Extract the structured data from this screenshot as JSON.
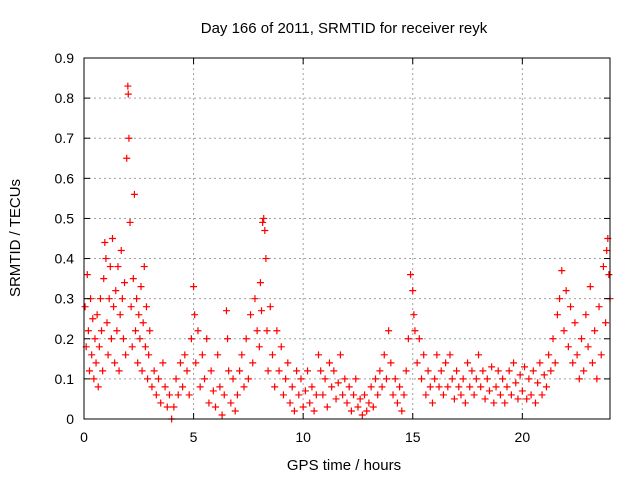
{
  "chart_data": {
    "type": "scatter",
    "title": "Day 166 of 2011, SRMTID for receiver reyk",
    "xlabel": "GPS time / hours",
    "ylabel": "SRMTID / TECUs",
    "xlim": [
      0,
      24
    ],
    "ylim": [
      0,
      0.9
    ],
    "xticks": [
      "0",
      "5",
      "10",
      "15",
      "20"
    ],
    "xtick_values": [
      0,
      5,
      10,
      15,
      20
    ],
    "yticks": [
      "0",
      "0.1",
      "0.2",
      "0.3",
      "0.4",
      "0.5",
      "0.6",
      "0.7",
      "0.8",
      "0.9"
    ],
    "ytick_values": [
      0,
      0.1,
      0.2,
      0.3,
      0.4,
      0.5,
      0.6,
      0.7,
      0.8,
      0.9
    ],
    "grid": true,
    "marker": "+",
    "color": "#ff0000",
    "series": [
      {
        "points": [
          [
            0.05,
            0.28
          ],
          [
            0.1,
            0.18
          ],
          [
            0.15,
            0.36
          ],
          [
            0.2,
            0.22
          ],
          [
            0.25,
            0.12
          ],
          [
            0.3,
            0.3
          ],
          [
            0.35,
            0.16
          ],
          [
            0.4,
            0.25
          ],
          [
            0.45,
            0.1
          ],
          [
            0.5,
            0.2
          ],
          [
            0.55,
            0.14
          ],
          [
            0.6,
            0.26
          ],
          [
            0.65,
            0.08
          ],
          [
            0.7,
            0.18
          ],
          [
            0.75,
            0.3
          ],
          [
            0.8,
            0.22
          ],
          [
            0.85,
            0.12
          ],
          [
            0.9,
            0.35
          ],
          [
            0.95,
            0.44
          ],
          [
            1.0,
            0.4
          ],
          [
            1.05,
            0.24
          ],
          [
            1.1,
            0.16
          ],
          [
            1.15,
            0.3
          ],
          [
            1.2,
            0.38
          ],
          [
            1.25,
            0.2
          ],
          [
            1.3,
            0.45
          ],
          [
            1.35,
            0.28
          ],
          [
            1.4,
            0.14
          ],
          [
            1.45,
            0.32
          ],
          [
            1.5,
            0.22
          ],
          [
            1.55,
            0.38
          ],
          [
            1.6,
            0.12
          ],
          [
            1.65,
            0.26
          ],
          [
            1.7,
            0.42
          ],
          [
            1.75,
            0.3
          ],
          [
            1.8,
            0.2
          ],
          [
            1.85,
            0.34
          ],
          [
            1.9,
            0.16
          ],
          [
            1.95,
            0.65
          ],
          [
            2.0,
            0.83
          ],
          [
            2.02,
            0.81
          ],
          [
            2.05,
            0.7
          ],
          [
            2.1,
            0.49
          ],
          [
            2.15,
            0.28
          ],
          [
            2.2,
            0.18
          ],
          [
            2.25,
            0.35
          ],
          [
            2.3,
            0.56
          ],
          [
            2.35,
            0.22
          ],
          [
            2.4,
            0.3
          ],
          [
            2.45,
            0.14
          ],
          [
            2.5,
            0.26
          ],
          [
            2.55,
            0.2
          ],
          [
            2.6,
            0.33
          ],
          [
            2.65,
            0.12
          ],
          [
            2.7,
            0.24
          ],
          [
            2.75,
            0.38
          ],
          [
            2.8,
            0.18
          ],
          [
            2.85,
            0.28
          ],
          [
            2.9,
            0.1
          ],
          [
            2.95,
            0.16
          ],
          [
            3.0,
            0.22
          ],
          [
            3.1,
            0.08
          ],
          [
            3.2,
            0.12
          ],
          [
            3.3,
            0.06
          ],
          [
            3.4,
            0.1
          ],
          [
            3.5,
            0.04
          ],
          [
            3.6,
            0.14
          ],
          [
            3.7,
            0.08
          ],
          [
            3.8,
            0.03
          ],
          [
            3.9,
            0.06
          ],
          [
            4.0,
            0.0
          ],
          [
            4.1,
            0.03
          ],
          [
            4.2,
            0.1
          ],
          [
            4.3,
            0.06
          ],
          [
            4.4,
            0.14
          ],
          [
            4.5,
            0.08
          ],
          [
            4.6,
            0.16
          ],
          [
            4.7,
            0.12
          ],
          [
            4.8,
            0.06
          ],
          [
            4.9,
            0.2
          ],
          [
            5.0,
            0.33
          ],
          [
            5.05,
            0.26
          ],
          [
            5.1,
            0.14
          ],
          [
            5.2,
            0.22
          ],
          [
            5.3,
            0.08
          ],
          [
            5.4,
            0.16
          ],
          [
            5.5,
            0.1
          ],
          [
            5.6,
            0.2
          ],
          [
            5.7,
            0.04
          ],
          [
            5.8,
            0.12
          ],
          [
            5.9,
            0.07
          ],
          [
            6.0,
            0.03
          ],
          [
            6.1,
            0.16
          ],
          [
            6.2,
            0.08
          ],
          [
            6.3,
            0.01
          ],
          [
            6.4,
            0.06
          ],
          [
            6.5,
            0.27
          ],
          [
            6.55,
            0.2
          ],
          [
            6.6,
            0.12
          ],
          [
            6.7,
            0.04
          ],
          [
            6.8,
            0.1
          ],
          [
            6.9,
            0.02
          ],
          [
            7.0,
            0.06
          ],
          [
            7.1,
            0.12
          ],
          [
            7.2,
            0.16
          ],
          [
            7.3,
            0.08
          ],
          [
            7.4,
            0.2
          ],
          [
            7.5,
            0.1
          ],
          [
            7.6,
            0.26
          ],
          [
            7.7,
            0.14
          ],
          [
            7.8,
            0.3
          ],
          [
            7.9,
            0.22
          ],
          [
            8.0,
            0.18
          ],
          [
            8.05,
            0.34
          ],
          [
            8.1,
            0.27
          ],
          [
            8.15,
            0.49
          ],
          [
            8.2,
            0.5
          ],
          [
            8.25,
            0.47
          ],
          [
            8.3,
            0.4
          ],
          [
            8.35,
            0.22
          ],
          [
            8.4,
            0.12
          ],
          [
            8.5,
            0.28
          ],
          [
            8.6,
            0.16
          ],
          [
            8.7,
            0.08
          ],
          [
            8.8,
            0.22
          ],
          [
            8.9,
            0.12
          ],
          [
            9.0,
            0.18
          ],
          [
            9.1,
            0.06
          ],
          [
            9.2,
            0.1
          ],
          [
            9.3,
            0.14
          ],
          [
            9.4,
            0.04
          ],
          [
            9.5,
            0.08
          ],
          [
            9.6,
            0.02
          ],
          [
            9.7,
            0.12
          ],
          [
            9.8,
            0.06
          ],
          [
            9.9,
            0.1
          ],
          [
            10.0,
            0.03
          ],
          [
            10.1,
            0.07
          ],
          [
            10.2,
            0.12
          ],
          [
            10.3,
            0.04
          ],
          [
            10.4,
            0.08
          ],
          [
            10.5,
            0.02
          ],
          [
            10.6,
            0.06
          ],
          [
            10.7,
            0.16
          ],
          [
            10.8,
            0.12
          ],
          [
            10.9,
            0.06
          ],
          [
            11.0,
            0.1
          ],
          [
            11.1,
            0.03
          ],
          [
            11.2,
            0.14
          ],
          [
            11.3,
            0.08
          ],
          [
            11.4,
            0.12
          ],
          [
            11.5,
            0.05
          ],
          [
            11.6,
            0.09
          ],
          [
            11.7,
            0.16
          ],
          [
            11.8,
            0.06
          ],
          [
            11.9,
            0.1
          ],
          [
            12.0,
            0.04
          ],
          [
            12.1,
            0.08
          ],
          [
            12.2,
            0.02
          ],
          [
            12.3,
            0.06
          ],
          [
            12.4,
            0.1
          ],
          [
            12.5,
            0.03
          ],
          [
            12.6,
            0.05
          ],
          [
            12.7,
            0.01
          ],
          [
            12.8,
            0.06
          ],
          [
            12.9,
            0.02
          ],
          [
            13.0,
            0.04
          ],
          [
            13.1,
            0.08
          ],
          [
            13.2,
            0.03
          ],
          [
            13.3,
            0.1
          ],
          [
            13.4,
            0.06
          ],
          [
            13.5,
            0.12
          ],
          [
            13.6,
            0.08
          ],
          [
            13.7,
            0.16
          ],
          [
            13.8,
            0.1
          ],
          [
            13.9,
            0.22
          ],
          [
            14.0,
            0.14
          ],
          [
            14.1,
            0.06
          ],
          [
            14.2,
            0.1
          ],
          [
            14.3,
            0.04
          ],
          [
            14.4,
            0.08
          ],
          [
            14.5,
            0.02
          ],
          [
            14.6,
            0.06
          ],
          [
            14.7,
            0.12
          ],
          [
            14.8,
            0.2
          ],
          [
            14.9,
            0.36
          ],
          [
            15.0,
            0.32
          ],
          [
            15.05,
            0.26
          ],
          [
            15.1,
            0.22
          ],
          [
            15.2,
            0.14
          ],
          [
            15.3,
            0.2
          ],
          [
            15.4,
            0.1
          ],
          [
            15.5,
            0.16
          ],
          [
            15.6,
            0.06
          ],
          [
            15.7,
            0.12
          ],
          [
            15.8,
            0.08
          ],
          [
            15.9,
            0.04
          ],
          [
            16.0,
            0.1
          ],
          [
            16.1,
            0.16
          ],
          [
            16.2,
            0.08
          ],
          [
            16.3,
            0.12
          ],
          [
            16.4,
            0.06
          ],
          [
            16.5,
            0.14
          ],
          [
            16.6,
            0.08
          ],
          [
            16.7,
            0.16
          ],
          [
            16.8,
            0.1
          ],
          [
            16.9,
            0.05
          ],
          [
            17.0,
            0.12
          ],
          [
            17.1,
            0.08
          ],
          [
            17.2,
            0.06
          ],
          [
            17.3,
            0.1
          ],
          [
            17.4,
            0.04
          ],
          [
            17.5,
            0.14
          ],
          [
            17.6,
            0.08
          ],
          [
            17.7,
            0.12
          ],
          [
            17.8,
            0.06
          ],
          [
            17.9,
            0.1
          ],
          [
            18.0,
            0.16
          ],
          [
            18.1,
            0.08
          ],
          [
            18.2,
            0.12
          ],
          [
            18.3,
            0.05
          ],
          [
            18.4,
            0.1
          ],
          [
            18.5,
            0.07
          ],
          [
            18.6,
            0.13
          ],
          [
            18.7,
            0.04
          ],
          [
            18.8,
            0.08
          ],
          [
            18.9,
            0.12
          ],
          [
            19.0,
            0.06
          ],
          [
            19.1,
            0.1
          ],
          [
            19.2,
            0.04
          ],
          [
            19.3,
            0.08
          ],
          [
            19.4,
            0.12
          ],
          [
            19.5,
            0.06
          ],
          [
            19.6,
            0.14
          ],
          [
            19.7,
            0.09
          ],
          [
            19.8,
            0.05
          ],
          [
            19.9,
            0.11
          ],
          [
            20.0,
            0.07
          ],
          [
            20.1,
            0.13
          ],
          [
            20.2,
            0.05
          ],
          [
            20.3,
            0.1
          ],
          [
            20.4,
            0.06
          ],
          [
            20.5,
            0.12
          ],
          [
            20.6,
            0.04
          ],
          [
            20.7,
            0.09
          ],
          [
            20.8,
            0.14
          ],
          [
            20.9,
            0.06
          ],
          [
            21.0,
            0.11
          ],
          [
            21.1,
            0.08
          ],
          [
            21.2,
            0.16
          ],
          [
            21.3,
            0.12
          ],
          [
            21.4,
            0.2
          ],
          [
            21.5,
            0.14
          ],
          [
            21.6,
            0.26
          ],
          [
            21.7,
            0.3
          ],
          [
            21.8,
            0.37
          ],
          [
            21.9,
            0.22
          ],
          [
            22.0,
            0.32
          ],
          [
            22.1,
            0.18
          ],
          [
            22.2,
            0.28
          ],
          [
            22.3,
            0.14
          ],
          [
            22.4,
            0.24
          ],
          [
            22.5,
            0.16
          ],
          [
            22.6,
            0.1
          ],
          [
            22.7,
            0.2
          ],
          [
            22.8,
            0.12
          ],
          [
            22.9,
            0.26
          ],
          [
            23.0,
            0.18
          ],
          [
            23.1,
            0.33
          ],
          [
            23.2,
            0.14
          ],
          [
            23.3,
            0.22
          ],
          [
            23.4,
            0.1
          ],
          [
            23.5,
            0.28
          ],
          [
            23.6,
            0.16
          ],
          [
            23.7,
            0.38
          ],
          [
            23.8,
            0.24
          ],
          [
            23.85,
            0.42
          ],
          [
            23.9,
            0.45
          ],
          [
            23.95,
            0.36
          ],
          [
            24.0,
            0.3
          ]
        ]
      }
    ]
  }
}
